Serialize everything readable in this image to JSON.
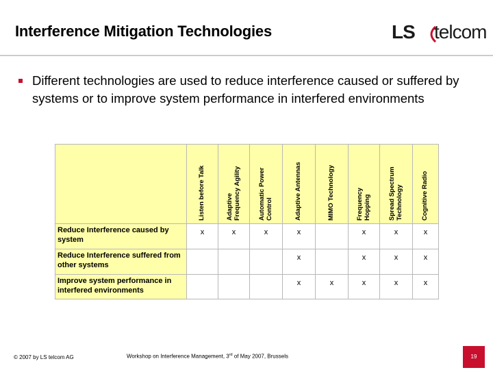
{
  "header": {
    "title": "Interference Mitigation Technologies",
    "logo_ls": "LS",
    "logo_telcom": "telcom",
    "brand_color": "#c8102e"
  },
  "bullet": {
    "text": "Different technologies are used to reduce interference caused or suffered by systems or to improve system performance in interfered environments"
  },
  "table": {
    "columns": [
      {
        "lines": [
          "Listen before Talk"
        ]
      },
      {
        "lines": [
          "Adaptive",
          "Frequency Agility"
        ]
      },
      {
        "lines": [
          "Automatic Power",
          "Control"
        ]
      },
      {
        "lines": [
          "Adaptive Antennas"
        ]
      },
      {
        "lines": [
          "MIMO Technology"
        ]
      },
      {
        "lines": [
          "Frequency",
          "Hopping"
        ]
      },
      {
        "lines": [
          "Spread Spectrum",
          "Technology"
        ]
      },
      {
        "lines": [
          "Cognitive Radio"
        ]
      }
    ],
    "rows": [
      {
        "label": "Reduce Interference caused by system",
        "cells": [
          "x",
          "x",
          "x",
          "x",
          "",
          "x",
          "x",
          "x"
        ]
      },
      {
        "label": "Reduce Interference suffered from other systems",
        "cells": [
          "",
          "",
          "",
          "x",
          "",
          "x",
          "x",
          "x"
        ]
      },
      {
        "label": "Improve system performance in interfered environments",
        "cells": [
          "",
          "",
          "",
          "x",
          "x",
          "x",
          "x",
          "x"
        ]
      }
    ]
  },
  "footer": {
    "copyright": "© 2007 by LS telcom AG",
    "event_pre": "Workshop on Interference Management, 3",
    "event_sup": "rd",
    "event_post": " of May 2007, Brussels",
    "page": "19"
  }
}
